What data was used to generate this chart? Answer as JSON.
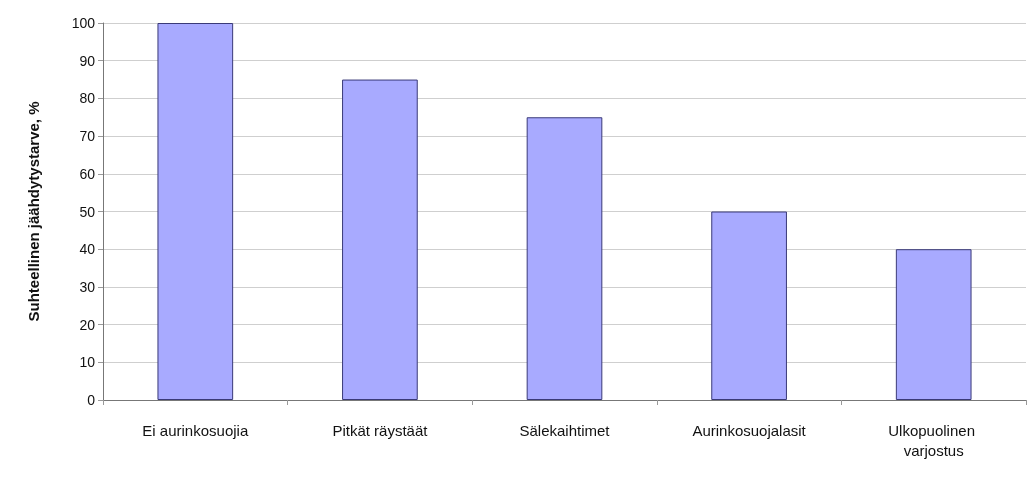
{
  "chart_data": {
    "type": "bar",
    "ylabel": "Suhteellinen jäähdytystarve, %",
    "categories": [
      "Ei aurinkosuojia",
      "Pitkät räystäät",
      "Sälekaihtimet",
      "Aurinkosuojalasit",
      "Ulkopuolinen varjostus"
    ],
    "values": [
      100,
      85,
      75,
      50,
      40
    ],
    "color": "#a8aaff",
    "ylim": [
      0,
      100
    ],
    "yticks": [
      0,
      10,
      20,
      30,
      40,
      50,
      60,
      70,
      80,
      90,
      100
    ],
    "grid": "y"
  }
}
